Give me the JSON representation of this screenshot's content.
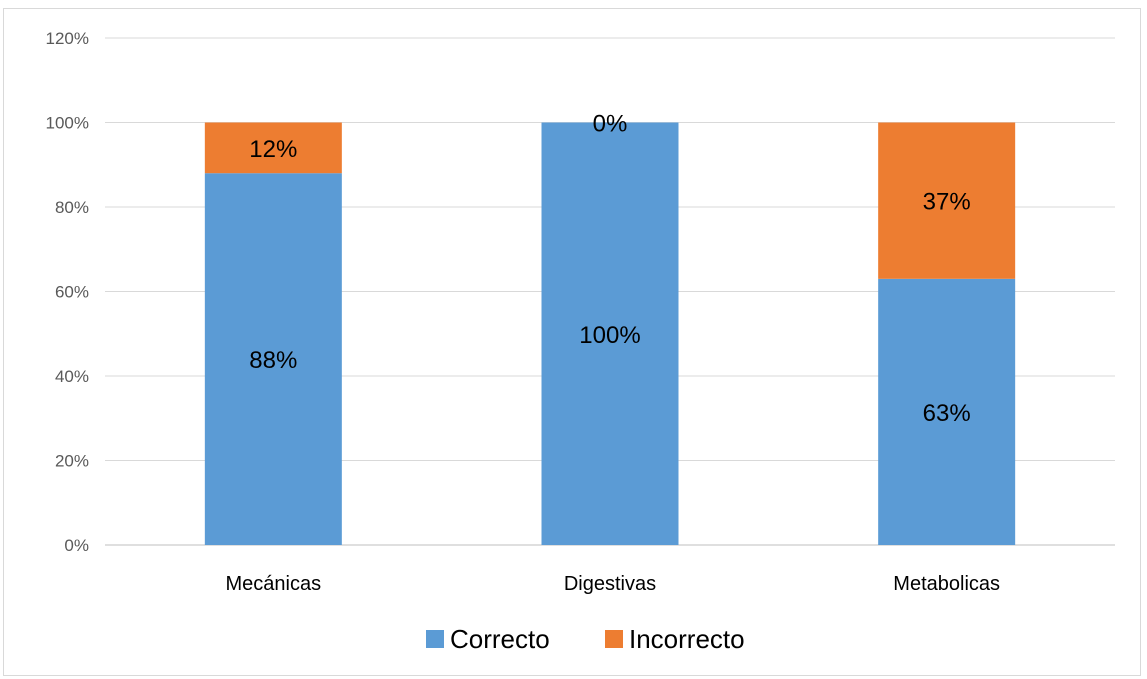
{
  "chart_data": {
    "type": "bar",
    "stacked": true,
    "categories": [
      "Mecánicas",
      "Digestivas",
      "Metabolicas"
    ],
    "series": [
      {
        "name": "Correcto",
        "values": [
          88,
          100,
          63
        ],
        "color": "#5b9bd5",
        "labels": [
          "88%",
          "100%",
          "63%"
        ]
      },
      {
        "name": "Incorrecto",
        "values": [
          12,
          0,
          37
        ],
        "color": "#ed7d31",
        "labels": [
          "12%",
          "0%",
          "37%"
        ]
      }
    ],
    "y_ticks": [
      "0%",
      "20%",
      "40%",
      "60%",
      "80%",
      "100%",
      "120%"
    ],
    "ylim": [
      0,
      120
    ],
    "grid": true,
    "legend_position": "bottom",
    "title": "",
    "xlabel": "",
    "ylabel": ""
  }
}
